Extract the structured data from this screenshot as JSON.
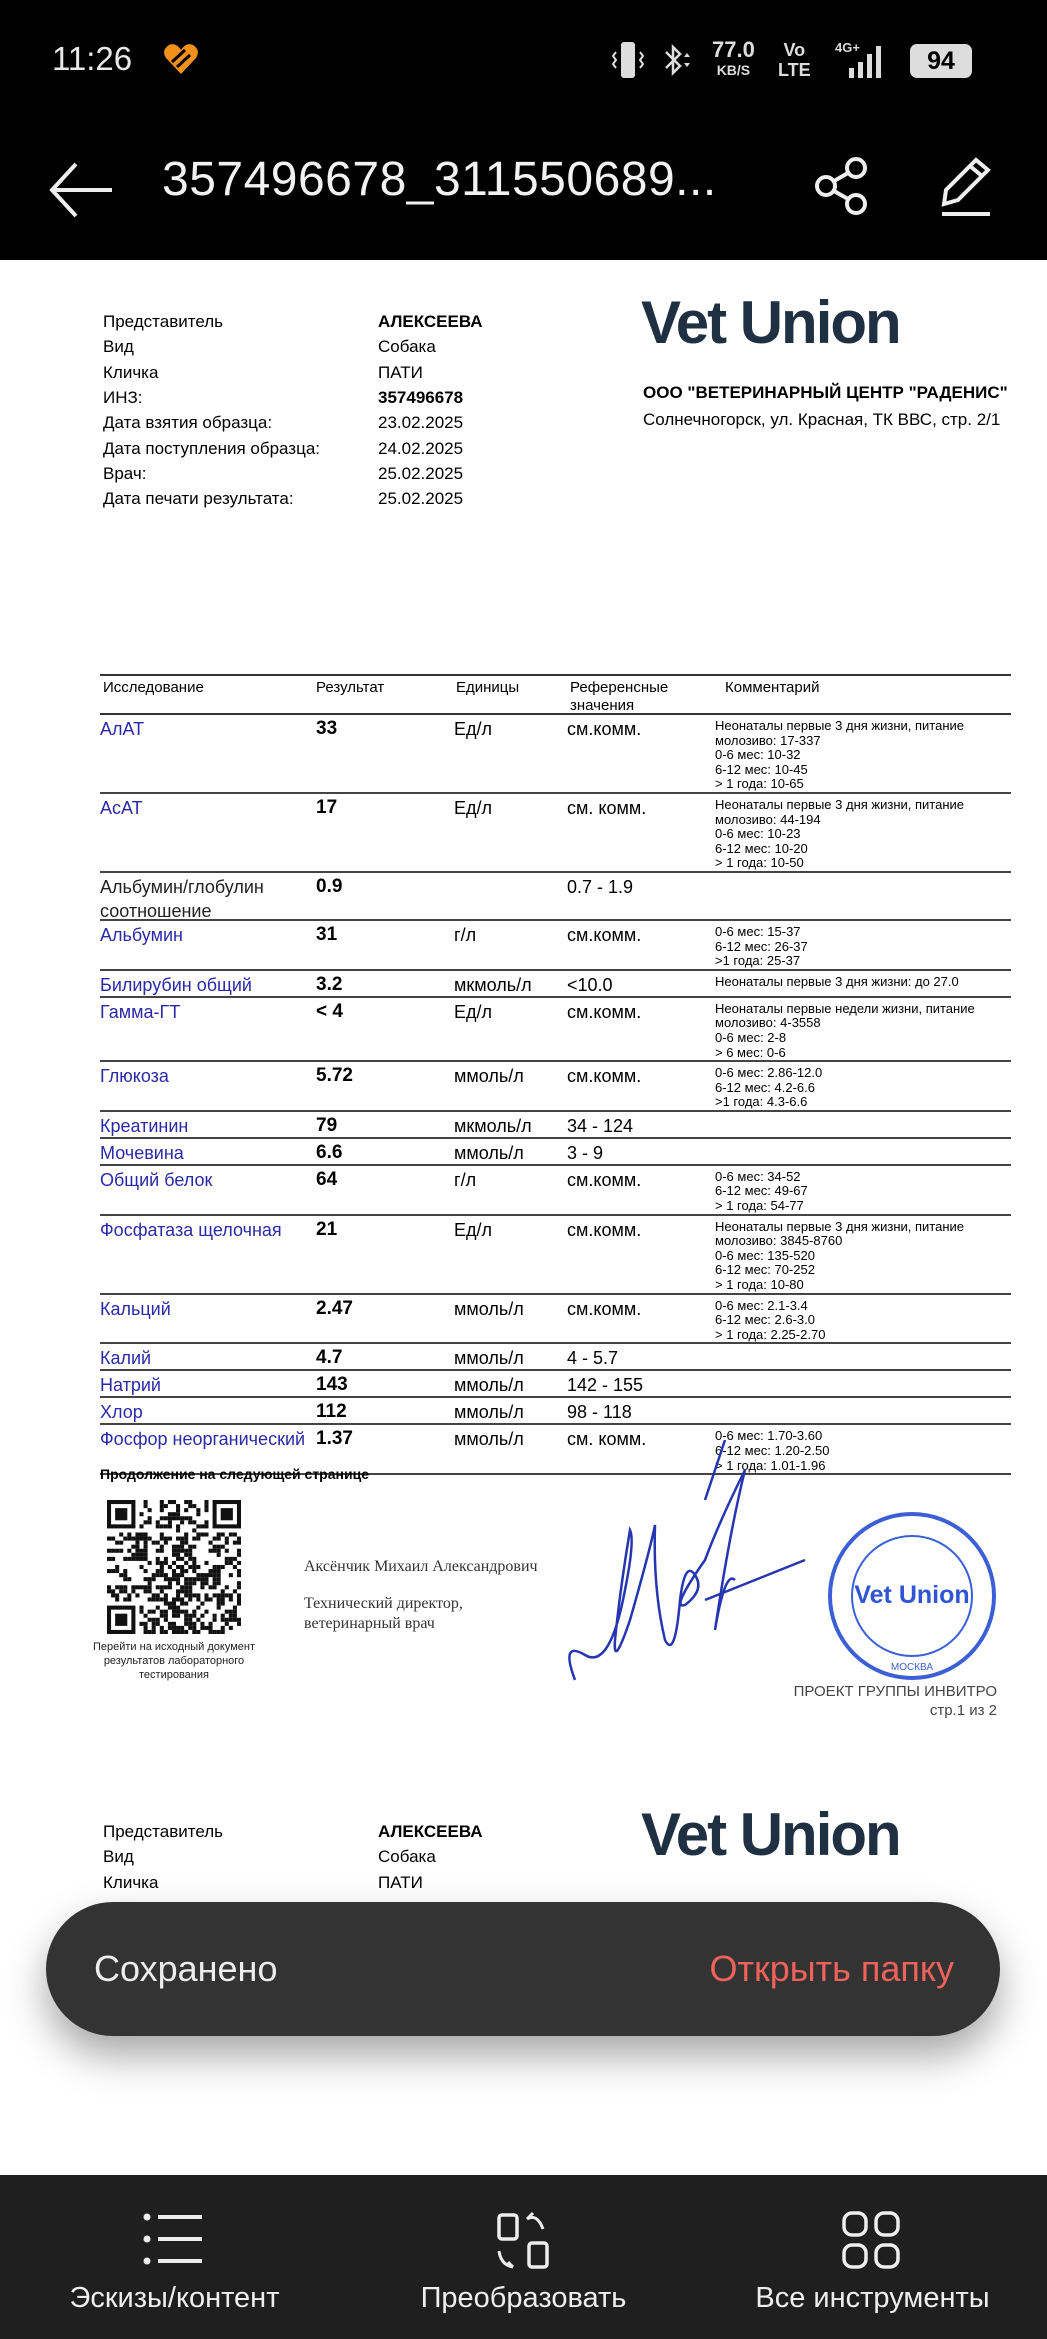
{
  "status_bar": {
    "time": "11:26",
    "net_speed": "77.0",
    "net_unit": "KB/S",
    "volte_top": "Vo",
    "volte_bottom": "LTE",
    "network": "4G+",
    "battery": "94"
  },
  "toolbar": {
    "title": "357496678_311550689...",
    "back_icon": "arrow-left-icon",
    "share_icon": "share-icon",
    "edit_icon": "pencil-icon"
  },
  "page1": {
    "info": [
      {
        "label": "Представитель",
        "value": "АЛЕКСЕЕВА",
        "bold": true
      },
      {
        "label": "Вид",
        "value": "Собака"
      },
      {
        "label": "Кличка",
        "value": "ПАТИ"
      },
      {
        "label": "ИНЗ:",
        "value": "357496678",
        "bold": true
      },
      {
        "label": "Дата взятия образца:",
        "value": "23.02.2025"
      },
      {
        "label": "Дата поступления образца:",
        "value": "24.02.2025"
      },
      {
        "label": "Врач:",
        "value": "25.02.2025"
      },
      {
        "label": "Дата печати результата:",
        "value": "25.02.2025"
      }
    ],
    "logo": "Vet Union",
    "company_name": "ООО \"ВЕТЕРИНАРНЫЙ ЦЕНТР \"РАДЕНИС\"",
    "company_address": "Солнечногорск, ул. Красная, ТК ВВС, стр. 2/1",
    "table": {
      "headers": [
        "Исследование",
        "Результат",
        "Единицы",
        "Референсные значения",
        "Комментарий"
      ],
      "rows": [
        {
          "name": "АлАТ",
          "result": "33",
          "unit": "Ед/л",
          "ref": "см.комм.",
          "comment": [
            "Неонаталы первые 3 дня жизни, питание",
            "молозиво: 17-337",
            "0-6 мес: 10-32",
            "6-12 мес: 10-45",
            "> 1 года: 10-65"
          ]
        },
        {
          "name": "АсАТ",
          "result": "17",
          "unit": "Ед/л",
          "ref": "см. комм.",
          "comment": [
            "Неонаталы первые 3 дня жизни, питание",
            "молозиво: 44-194",
            "0-6 мес: 10-23",
            "6-12 мес: 10-20",
            "> 1 года: 10-50"
          ]
        },
        {
          "name": "Альбумин/глобулин соотношение",
          "result": "0.9",
          "unit": "",
          "ref": "0.7 - 1.9",
          "comment": [],
          "plain": true
        },
        {
          "name": "Альбумин",
          "result": "31",
          "unit": "г/л",
          "ref": "см.комм.",
          "comment": [
            "0-6 мес: 15-37",
            "6-12 мес: 26-37",
            ">1 года: 25-37"
          ]
        },
        {
          "name": "Билирубин общий",
          "result": "3.2",
          "unit": "мкмоль/л",
          "ref": "<10.0",
          "comment": [
            "Неонаталы первые 3 дня жизни: до 27.0"
          ]
        },
        {
          "name": "Гамма-ГТ",
          "result": "< 4",
          "unit": "Ед/л",
          "ref": "см.комм.",
          "comment": [
            "Неонаталы первые недели жизни, питание",
            "молозиво: 4-3558",
            "0-6 мес: 2-8",
            "> 6 мес: 0-6"
          ]
        },
        {
          "name": "Глюкоза",
          "result": "5.72",
          "unit": "ммоль/л",
          "ref": "см.комм.",
          "comment": [
            "0-6 мес: 2.86-12.0",
            "6-12 мес: 4.2-6.6",
            ">1 года: 4.3-6.6"
          ]
        },
        {
          "name": "Креатинин",
          "result": "79",
          "unit": "мкмоль/л",
          "ref": "34 - 124",
          "comment": []
        },
        {
          "name": "Мочевина",
          "result": "6.6",
          "unit": "ммоль/л",
          "ref": "3 - 9",
          "comment": []
        },
        {
          "name": "Общий белок",
          "result": "64",
          "unit": "г/л",
          "ref": "см.комм.",
          "comment": [
            "0-6 мес: 34-52",
            "6-12 мес: 49-67",
            "> 1 года: 54-77"
          ]
        },
        {
          "name": "Фосфатаза щелочная",
          "result": "21",
          "unit": "Ед/л",
          "ref": "см.комм.",
          "comment": [
            "Неонаталы первые 3 дня жизни, питание",
            "молозиво: 3845-8760",
            "0-6 мес: 135-520",
            "6-12 мес: 70-252",
            "> 1 года: 10-80"
          ]
        },
        {
          "name": "Кальций",
          "result": "2.47",
          "unit": "ммоль/л",
          "ref": "см.комм.",
          "comment": [
            "0-6 мес: 2.1-3.4",
            "6-12 мес: 2.6-3.0",
            "> 1 года: 2.25-2.70"
          ]
        },
        {
          "name": "Калий",
          "result": "4.7",
          "unit": "ммоль/л",
          "ref": "4 - 5.7",
          "comment": []
        },
        {
          "name": "Натрий",
          "result": "143",
          "unit": "ммоль/л",
          "ref": "142 - 155",
          "comment": []
        },
        {
          "name": "Хлор",
          "result": "112",
          "unit": "ммоль/л",
          "ref": "98 - 118",
          "comment": []
        },
        {
          "name": "Фосфор неорганический",
          "result": "1.37",
          "unit": "ммоль/л",
          "ref": "см. комм.",
          "comment": [
            "0-6 мес: 1.70-3.60",
            "6-12 мес: 1.20-2.50",
            "> 1 года: 1.01-1.96"
          ]
        }
      ]
    },
    "continuation": "Продолжение на следующей странице",
    "qr_caption": "Перейти на исходный документ результатов лабораторного тестирования",
    "signer_name": "Аксёнчик Михаил Александрович",
    "signer_title_1": "Технический директор,",
    "signer_title_2": "ветеринарный врач",
    "stamp_logo": "Vet Union",
    "stamp_city": "МОСКВА",
    "project": "ПРОЕКТ ГРУППЫ ИНВИТРО",
    "page_number": "стр.1 из 2"
  },
  "page2": {
    "info": [
      {
        "label": "Представитель",
        "value": "АЛЕКСЕЕВА",
        "bold": true
      },
      {
        "label": "Вид",
        "value": "Собака"
      },
      {
        "label": "Кличка",
        "value": "ПАТИ"
      }
    ],
    "logo": "Vet Union"
  },
  "snackbar": {
    "message": "Сохранено",
    "action": "Открыть папку",
    "action_color": "#f0625a"
  },
  "bottom_bar": [
    {
      "label": "Эскизы/контент",
      "icon": "list-icon"
    },
    {
      "label": "Преобразовать",
      "icon": "convert-icon"
    },
    {
      "label": "Все инструменты",
      "icon": "grid-icon"
    }
  ]
}
